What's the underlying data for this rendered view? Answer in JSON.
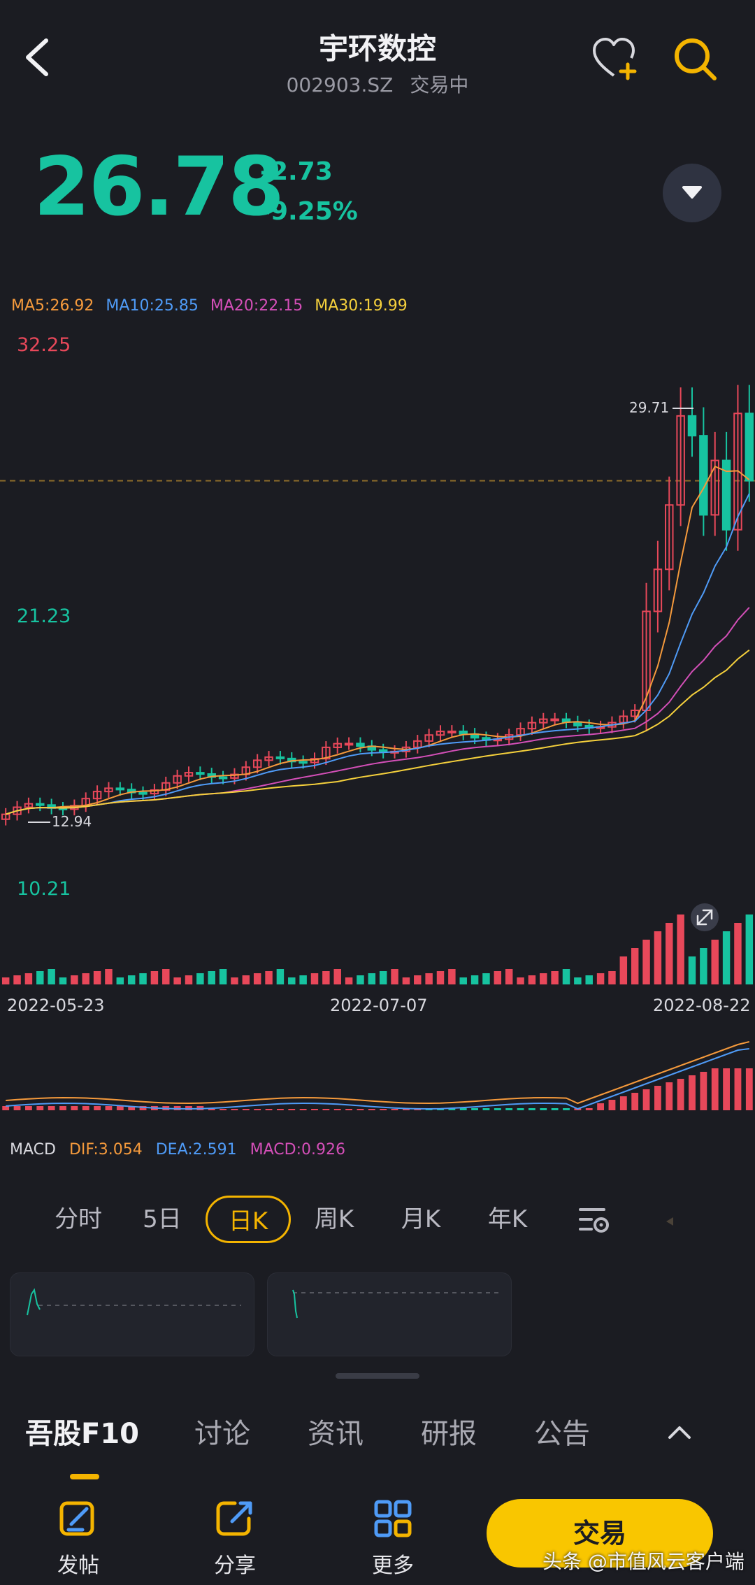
{
  "header": {
    "title": "宇环数控",
    "code": "002903.SZ",
    "status": "交易中",
    "back_icon": "chevron-left-icon",
    "fav_icon": "heart-plus-icon",
    "search_icon": "search-icon"
  },
  "quote": {
    "price": "26.78",
    "change": "-2.73",
    "change_pct": "-9.25%",
    "down_color": "#17c3a0",
    "up_color": "#e8485a"
  },
  "ma": {
    "ma5": "MA5:26.92",
    "ma10": "MA10:25.85",
    "ma20": "MA20:22.15",
    "ma30": "MA30:19.99",
    "colors": {
      "ma5": "#f59a3c",
      "ma10": "#4f9bf7",
      "ma20": "#d44fb8",
      "ma30": "#f5d03c"
    }
  },
  "axis": {
    "high": "32.25",
    "mid": "21.23",
    "low": "10.21",
    "max_marker": "29.71",
    "min_marker": "12.94"
  },
  "dates": {
    "start": "2022-05-23",
    "middle": "2022-07-07",
    "end": "2022-08-22"
  },
  "macd": {
    "name": "MACD",
    "dif": "DIF:3.054",
    "dea": "DEA:2.591",
    "macd": "MACD:0.926"
  },
  "period_tabs": [
    {
      "label": "分时"
    },
    {
      "label": "5日"
    },
    {
      "label": "日K"
    },
    {
      "label": "周K"
    },
    {
      "label": "月K"
    },
    {
      "label": "年K"
    }
  ],
  "bottom_tabs": [
    {
      "label": "吾股F10"
    },
    {
      "label": "讨论"
    },
    {
      "label": "资讯"
    },
    {
      "label": "研报"
    },
    {
      "label": "公告"
    }
  ],
  "actions": {
    "post": "发帖",
    "share": "分享",
    "more": "更多",
    "trade": "交易"
  },
  "watermark": "头条 @市值风云客户端"
}
